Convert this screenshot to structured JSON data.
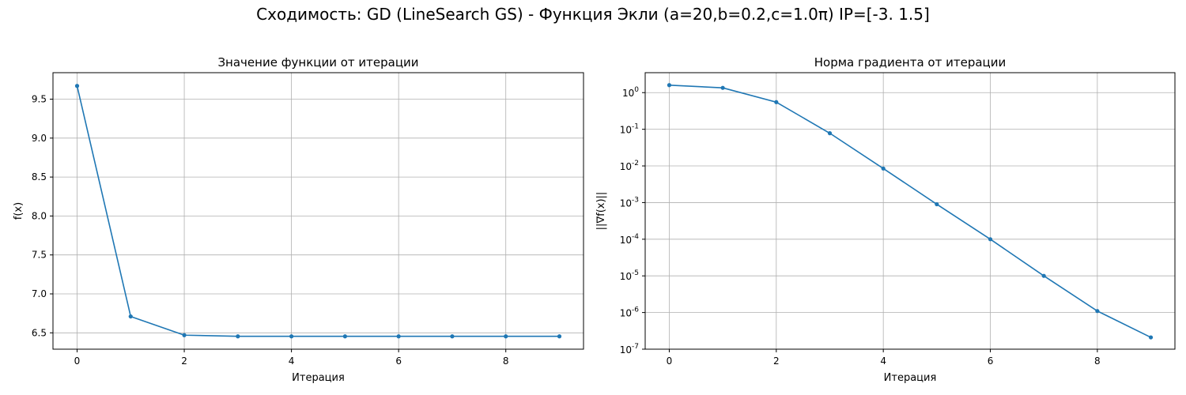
{
  "suptitle": "Сходимость: GD (LineSearch GS) - Функция Экли (a=20,b=0.2,c=1.0π) IP=[-3.   1.5]",
  "colors": {
    "line": "#1f77b4",
    "grid": "#b0b0b0",
    "axis": "#000000"
  },
  "chart_data": [
    {
      "type": "line",
      "title": "Значение функции от итерации",
      "xlabel": "Итерация",
      "ylabel": "f(x)",
      "yscale": "linear",
      "grid": true,
      "xlim": [
        -0.45,
        9.45
      ],
      "ylim": [
        6.29,
        9.84
      ],
      "xticks": [
        0,
        2,
        4,
        6,
        8
      ],
      "xtick_labels": [
        "0",
        "2",
        "4",
        "6",
        "8"
      ],
      "yticks": [
        6.5,
        7.0,
        7.5,
        8.0,
        8.5,
        9.0,
        9.5
      ],
      "ytick_labels": [
        "6.5",
        "7.0",
        "7.5",
        "8.0",
        "8.5",
        "9.0",
        "9.5"
      ],
      "x": [
        0,
        1,
        2,
        3,
        4,
        5,
        6,
        7,
        8,
        9
      ],
      "y": [
        9.67,
        6.71,
        6.47,
        6.455,
        6.455,
        6.455,
        6.455,
        6.455,
        6.455,
        6.455
      ]
    },
    {
      "type": "line",
      "title": "Норма градиента от итерации",
      "xlabel": "Итерация",
      "ylabel": "||∇f(x)||",
      "yscale": "log",
      "grid": true,
      "xlim": [
        -0.45,
        9.45
      ],
      "ylim": [
        1e-07,
        3.5
      ],
      "xticks": [
        0,
        2,
        4,
        6,
        8
      ],
      "xtick_labels": [
        "0",
        "2",
        "4",
        "6",
        "8"
      ],
      "yticks": [
        1e-07,
        1e-06,
        1e-05,
        0.0001,
        0.001,
        0.01,
        0.1,
        1
      ],
      "ytick_exponents": [
        "-7",
        "-6",
        "-5",
        "-4",
        "-3",
        "-2",
        "-1",
        "0"
      ],
      "x": [
        0,
        1,
        2,
        3,
        4,
        5,
        6,
        7,
        8,
        9
      ],
      "y": [
        1.6,
        1.35,
        0.55,
        0.078,
        0.0085,
        0.0009,
        0.0001,
        1e-05,
        1.1e-06,
        2.1e-07
      ]
    }
  ]
}
